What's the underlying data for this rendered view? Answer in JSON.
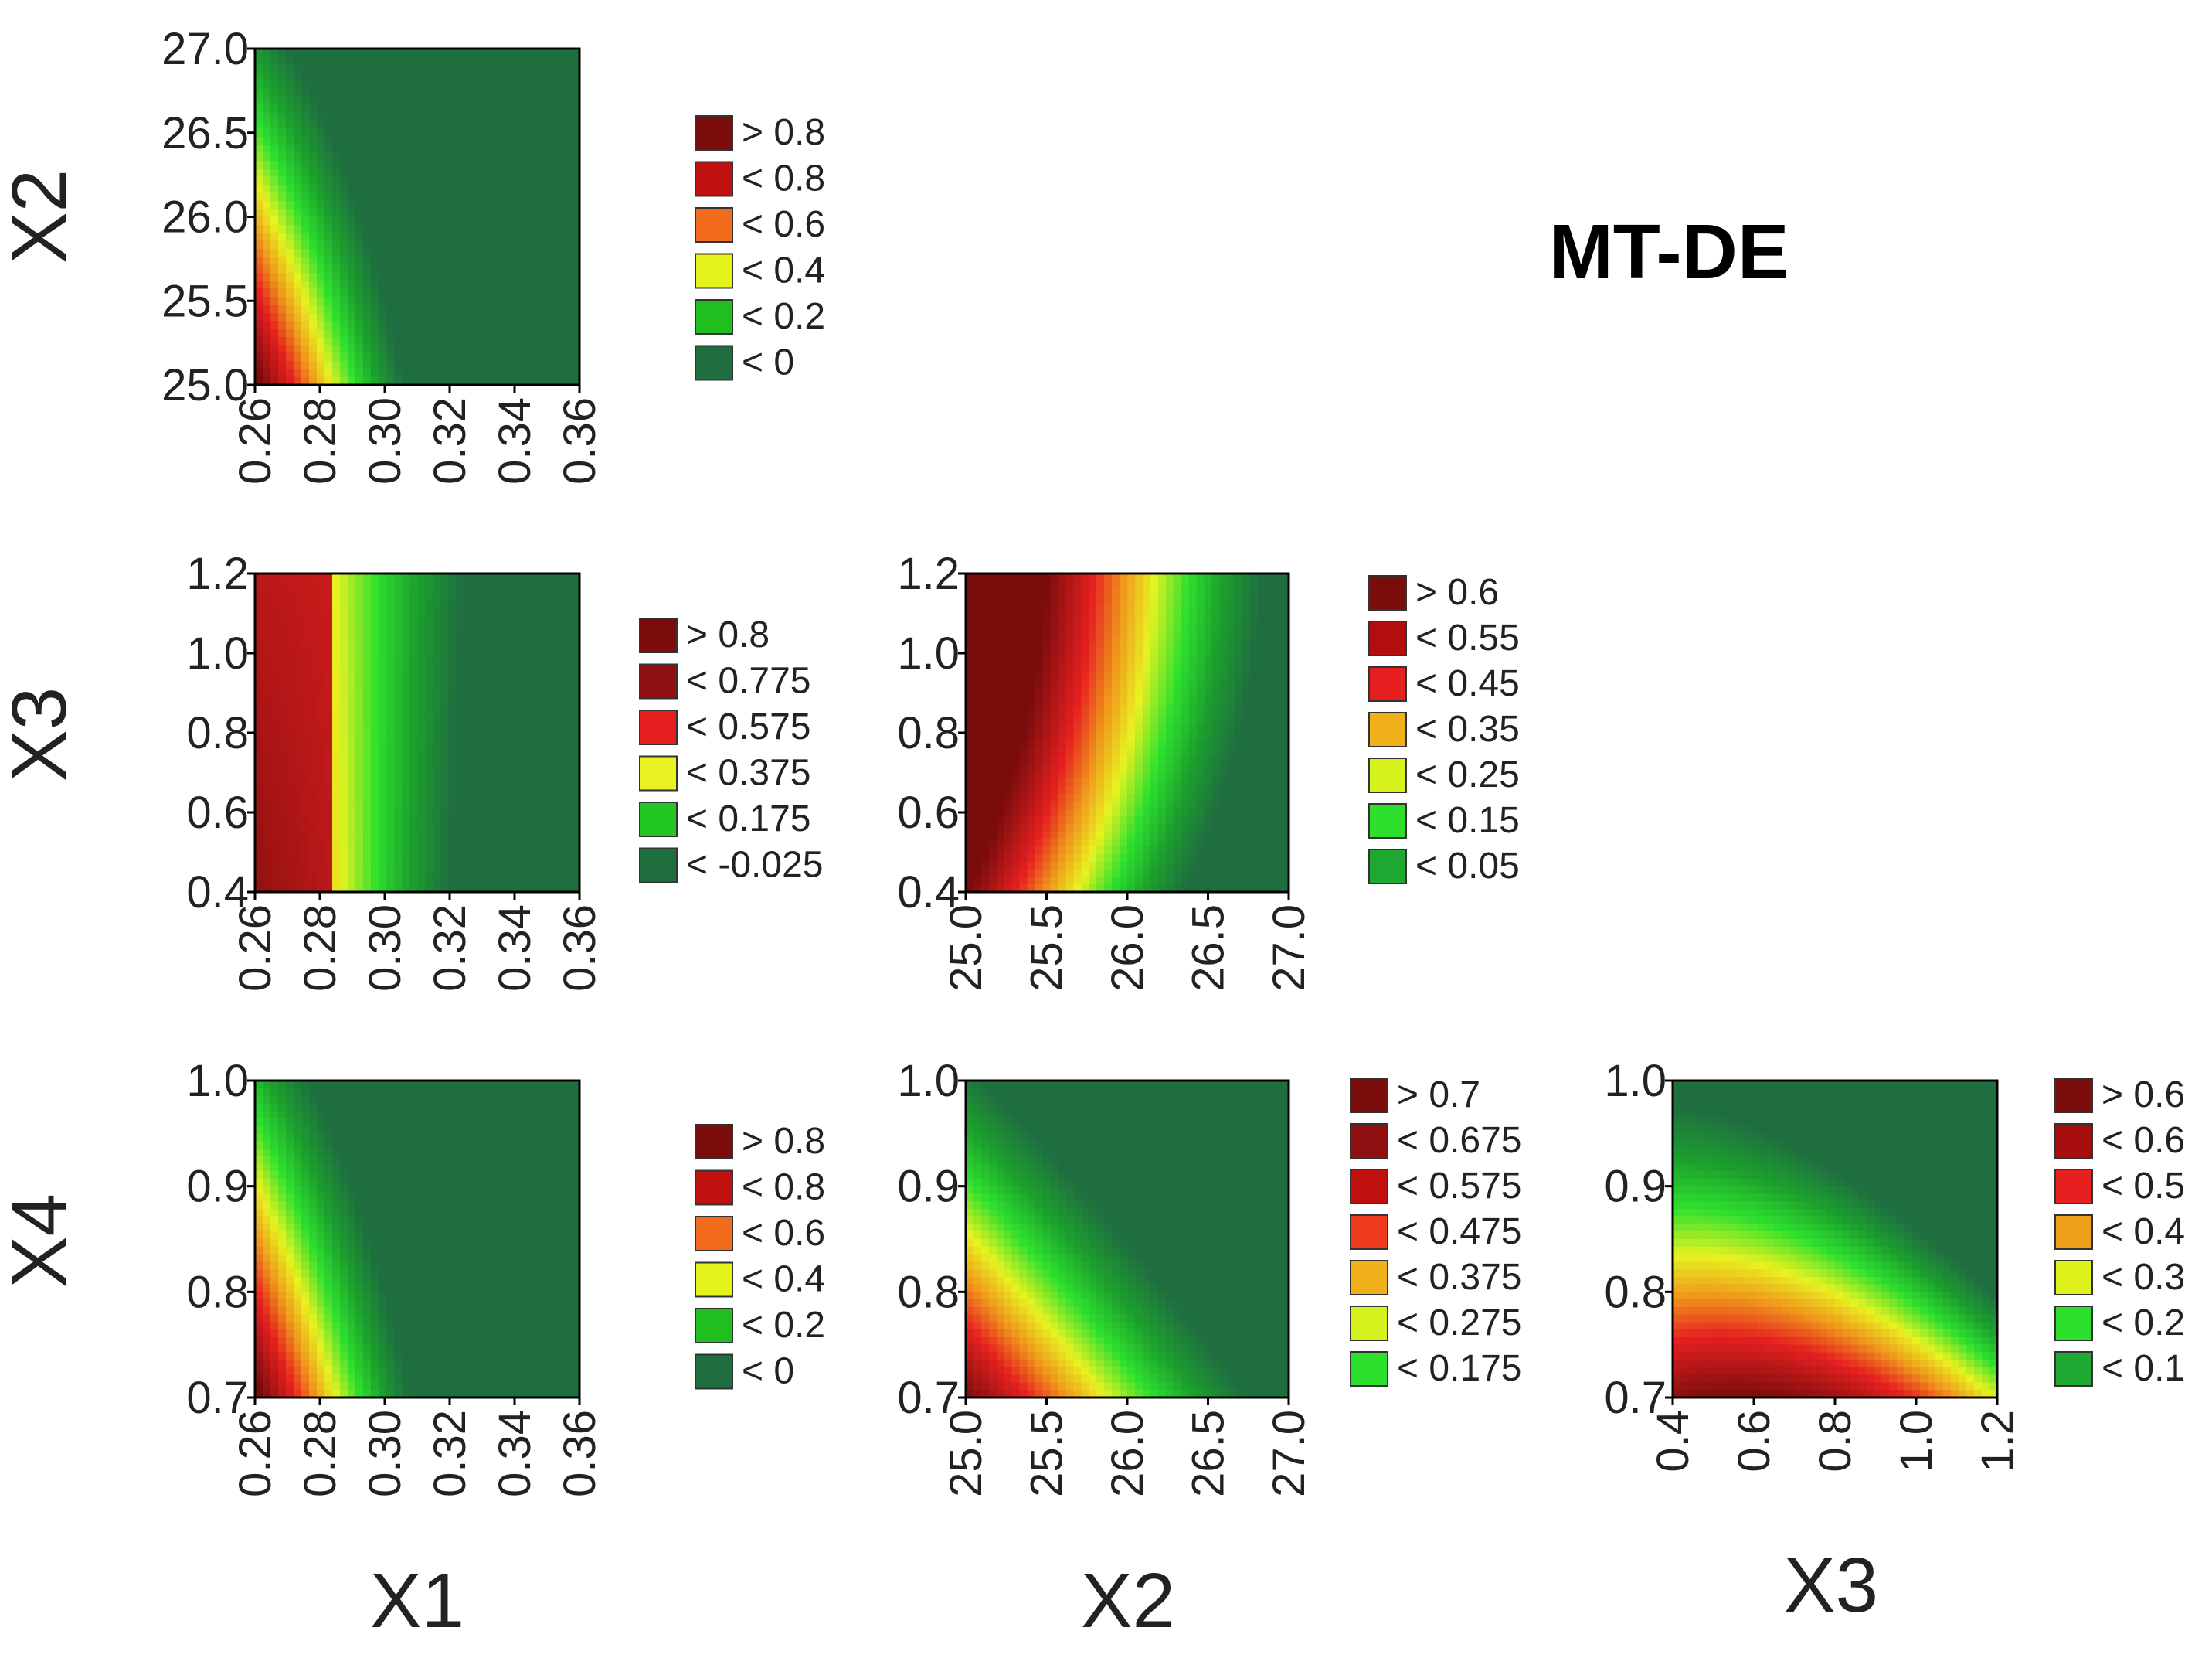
{
  "figure_title": "MT-DE",
  "colors": {
    "dark_red": "#7a0c0c",
    "red": "#c0100f",
    "bright_red": "#e62020",
    "orange": "#f08a1c",
    "yellow": "#e8f220",
    "light_green": "#2ee02e",
    "green": "#1fa832",
    "dark_green": "#1f6e40"
  },
  "chart_data": [
    {
      "type": "heatmap",
      "title": "",
      "xlabel": "",
      "ylabel": "X2",
      "xlim": [
        0.26,
        0.36
      ],
      "ylim": [
        25.0,
        27.0
      ],
      "x_ticks": [
        "0.26",
        "0.28",
        "0.30",
        "0.32",
        "0.34",
        "0.36"
      ],
      "y_ticks": [
        "25.0",
        "25.5",
        "26.0",
        "26.5",
        "27.0"
      ],
      "legend": [
        "> 0.8",
        "< 0.8",
        "< 0.6",
        "< 0.4",
        "< 0.2",
        "< 0"
      ],
      "legend_colors": [
        "#7a0c0c",
        "#c0100f",
        "#f26a1b",
        "#e6f21c",
        "#1fbf1f",
        "#1f6e40"
      ],
      "surface": "x1x2"
    },
    {
      "type": "heatmap",
      "title": "",
      "xlabel": "",
      "ylabel": "X3",
      "xlim": [
        0.26,
        0.36
      ],
      "ylim": [
        0.4,
        1.2
      ],
      "x_ticks": [
        "0.26",
        "0.28",
        "0.30",
        "0.32",
        "0.34",
        "0.36"
      ],
      "y_ticks": [
        "0.4",
        "0.6",
        "0.8",
        "1.0",
        "1.2"
      ],
      "legend": [
        "> 0.8",
        "< 0.775",
        "< 0.575",
        "< 0.375",
        "< 0.175",
        "< -0.025"
      ],
      "legend_colors": [
        "#7a0c0c",
        "#8e1010",
        "#e62020",
        "#e8f220",
        "#22c622",
        "#1f6e40"
      ],
      "surface": "x1x3"
    },
    {
      "type": "heatmap",
      "title": "",
      "xlabel": "",
      "ylabel": "",
      "xlim": [
        25.0,
        27.0
      ],
      "ylim": [
        0.4,
        1.2
      ],
      "x_ticks": [
        "25.0",
        "25.5",
        "26.0",
        "26.5",
        "27.0"
      ],
      "y_ticks": [
        "0.4",
        "0.6",
        "0.8",
        "1.0",
        "1.2"
      ],
      "legend": [
        "> 0.6",
        "< 0.55",
        "< 0.45",
        "< 0.35",
        "< 0.25",
        "< 0.15",
        "< 0.05"
      ],
      "legend_colors": [
        "#7a0c0c",
        "#b20e0e",
        "#e62020",
        "#f0b01c",
        "#d6f21c",
        "#2ee02e",
        "#1fa832"
      ],
      "surface": "x2x3"
    },
    {
      "type": "heatmap",
      "title": "",
      "xlabel": "X1",
      "ylabel": "X4",
      "xlim": [
        0.26,
        0.36
      ],
      "ylim": [
        0.7,
        1.0
      ],
      "x_ticks": [
        "0.26",
        "0.28",
        "0.30",
        "0.32",
        "0.34",
        "0.36"
      ],
      "y_ticks": [
        "0.7",
        "0.8",
        "0.9",
        "1.0"
      ],
      "legend": [
        "> 0.8",
        "< 0.8",
        "< 0.6",
        "< 0.4",
        "< 0.2",
        "< 0"
      ],
      "legend_colors": [
        "#7a0c0c",
        "#c0100f",
        "#f26a1b",
        "#e6f21c",
        "#1fbf1f",
        "#1f6e40"
      ],
      "surface": "x1x4"
    },
    {
      "type": "heatmap",
      "title": "",
      "xlabel": "X2",
      "ylabel": "",
      "xlim": [
        25.0,
        27.0
      ],
      "ylim": [
        0.7,
        1.0
      ],
      "x_ticks": [
        "25.0",
        "25.5",
        "26.0",
        "26.5",
        "27.0"
      ],
      "y_ticks": [
        "0.7",
        "0.8",
        "0.9",
        "1.0"
      ],
      "legend": [
        "> 0.7",
        "< 0.675",
        "< 0.575",
        "< 0.475",
        "< 0.375",
        "< 0.275",
        "< 0.175"
      ],
      "legend_colors": [
        "#7a0c0c",
        "#8e1010",
        "#c0100f",
        "#ee3a1c",
        "#f0b01c",
        "#d6f21c",
        "#2ee02e"
      ],
      "surface": "x2x4"
    },
    {
      "type": "heatmap",
      "title": "",
      "xlabel": "X3",
      "ylabel": "",
      "xlim": [
        0.4,
        1.2
      ],
      "ylim": [
        0.7,
        1.0
      ],
      "x_ticks": [
        "0.4",
        "0.6",
        "0.8",
        "1.0",
        "1.2"
      ],
      "y_ticks": [
        "0.7",
        "0.8",
        "0.9",
        "1.0"
      ],
      "legend": [
        "> 0.6",
        "< 0.6",
        "< 0.5",
        "< 0.4",
        "< 0.3",
        "< 0.2",
        "< 0.1"
      ],
      "legend_colors": [
        "#7a0c0c",
        "#a80e0e",
        "#e62020",
        "#f0a01c",
        "#e0f21c",
        "#2ee02e",
        "#1fa832"
      ],
      "surface": "x3x4"
    }
  ]
}
